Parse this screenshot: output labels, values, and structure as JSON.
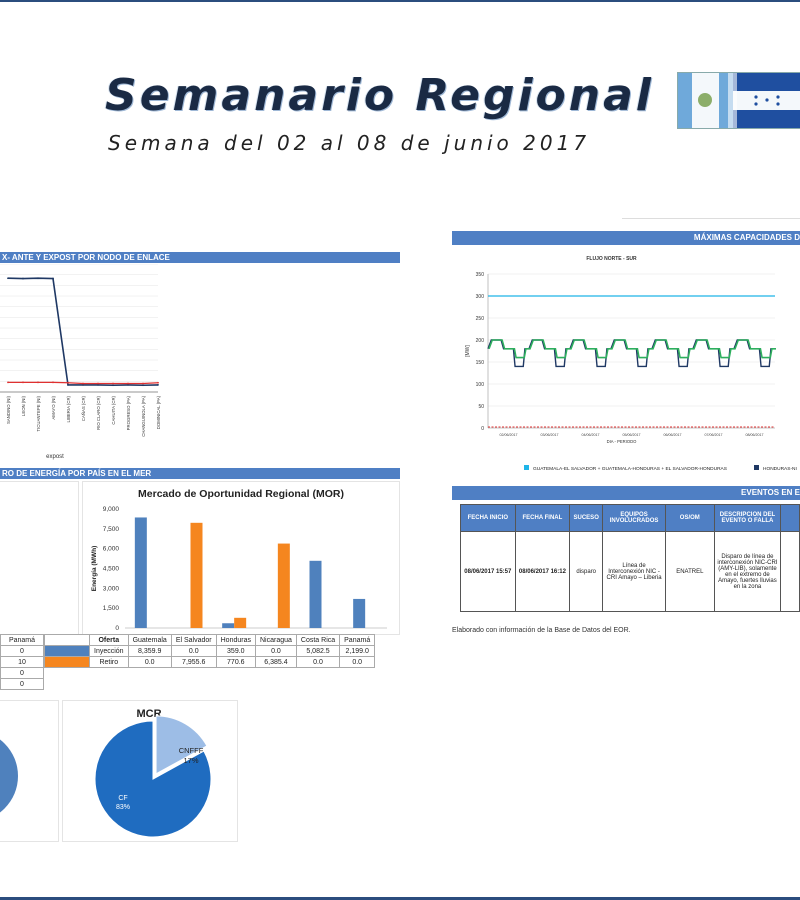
{
  "header": {
    "title": "Semanario Regional",
    "subtitle": "Semana del 02 al 08 de junio 2017"
  },
  "colors": {
    "section_bar": "#4f7fc4",
    "navy": "#1f3864",
    "red": "#e03030",
    "cyan": "#1fb5e8",
    "green": "#2eaf5e",
    "blue": "#4f81bd",
    "orange": "#f5861f",
    "pie_main": "#1f6cc0",
    "pie_light": "#9dbde6"
  },
  "sections": {
    "nodes_chart": "X- ANTE Y EXPOST POR NODO DE ENLACE",
    "energy_by_country": "RO DE ENERGÍA POR PAÍS EN EL MER",
    "max_capacity": "MÁXIMAS CAPACIDADES D",
    "events": "EVENTOS EN E"
  },
  "node_chart": {
    "chart_data": {
      "type": "line",
      "categories": [
        "SANDINO (NI)",
        "LEON (NI)",
        "TICUANTEPE (NI)",
        "AMAYO (NI)",
        "LIBERIA (CR)",
        "CAÑAS (CR)",
        "RIO CLARO (CR)",
        "CAHUITA (CR)",
        "PROGRESO (PA)",
        "CHANGUINOLA (PA)",
        "DOMINICAL (PA)"
      ],
      "series": [
        {
          "name": "",
          "color": "#1f3864",
          "values": [
            320,
            319,
            320,
            319,
            20,
            20,
            20,
            19,
            20,
            19,
            20
          ]
        },
        {
          "name": "",
          "color": "#e03030",
          "values": [
            27,
            27,
            27,
            27,
            26,
            24,
            24,
            24,
            24,
            24,
            26
          ]
        }
      ],
      "ylim": [
        0,
        360
      ],
      "xlabel": "expost"
    }
  },
  "fluid_chart": {
    "chart_data": {
      "type": "line",
      "title": "FLUJO NORTE - SUR",
      "ylabel": "[MW]",
      "xlabel": "DIA - PERIODO",
      "y_ticks": [
        0,
        50,
        100,
        150,
        200,
        250,
        300,
        350
      ],
      "ylim": [
        0,
        350
      ],
      "x_ticks": [
        "02/06/2017",
        "03/06/2017",
        "04/06/2017",
        "05/06/2017",
        "06/06/2017",
        "07/06/2017",
        "08/06/2017"
      ],
      "legend": [
        "GUATEMALA-EL SALVADOR + GUATEMALA-HONDURAS + EL SALVADOR-HONDURAS",
        "HONDURAS-NI"
      ],
      "series": [
        {
          "name": "GUATEMALA-EL SALVADOR + GUATEMALA-HONDURAS + EL SALVADOR-HONDURAS",
          "color": "#1fb5e8",
          "values": [
            300
          ]
        },
        {
          "name": "HONDURAS-NI",
          "color": "#1f3864",
          "pattern": {
            "high": 200,
            "mid": 180,
            "low": 140,
            "days": 7
          }
        },
        {
          "color": "#2eaf5e",
          "pattern": {
            "high": 200,
            "mid": 180,
            "low": 160,
            "days": 7
          }
        },
        {
          "color": "#e03030",
          "values": [
            0
          ]
        }
      ]
    }
  },
  "mor": {
    "chart_data": {
      "type": "bar",
      "title": "Mercado de Oportunidad Regional (MOR)",
      "ylabel": "Energía (MWh)",
      "ylim": [
        0,
        9000
      ],
      "y_ticks": [
        "0",
        "1,500",
        "3,000",
        "4,500",
        "6,000",
        "7,500",
        "9,000"
      ],
      "categories": [
        "Guatemala",
        "El Salvador",
        "Honduras",
        "Nicaragua",
        "Costa Rica",
        "Panamá"
      ],
      "series": [
        {
          "name": "Inyección",
          "color": "#4f81bd",
          "values": [
            8359.9,
            0.0,
            359.0,
            0.0,
            5082.5,
            2199.0
          ]
        },
        {
          "name": "Retiro",
          "color": "#f5861f",
          "values": [
            0.0,
            7955.6,
            770.6,
            6385.4,
            0.0,
            0.0
          ]
        }
      ]
    },
    "table": {
      "header": [
        "Oferta",
        "Guatemala",
        "El Salvador",
        "Honduras",
        "Nicaragua",
        "Costa Rica",
        "Panamá"
      ],
      "rows": [
        [
          "Inyección",
          "8,359.9",
          "0.0",
          "359.0",
          "0.0",
          "5,082.5",
          "2,199.0"
        ],
        [
          "Retiro",
          "0.0",
          "7,955.6",
          "770.6",
          "6,385.4",
          "0.0",
          "0.0"
        ]
      ]
    }
  },
  "left_table": {
    "header": "Panamá",
    "cells": [
      "0",
      "10",
      "0",
      "0"
    ]
  },
  "mcr": {
    "chart_data": {
      "type": "pie",
      "title": "MCR",
      "labels": [
        "CF",
        "CNFFF"
      ],
      "values": [
        83,
        17
      ],
      "text": [
        "CF\n83%",
        "CNFFF\n17%"
      ]
    }
  },
  "events": {
    "headers": [
      "FECHA INICIO",
      "FECHA FINAL",
      "SUCESO",
      "EQUIPOS INVOLUCRADOS",
      "OS/OM",
      "DESCRIPCION DEL EVENTO O FALLA"
    ],
    "row": [
      "08/06/2017 15:57",
      "08/06/2017 16:12",
      "disparo",
      "Línea de Interconexión NIC - CRI Amayo – Liberia",
      "ENATREL",
      "Disparo de línea de interconexión NIC-CRI (AMY-LIB), solamente en el extremo de Amayo, fuertes lluvias en la zona"
    ]
  },
  "footnote": "Elaborado con información de la Base de Datos del EOR."
}
